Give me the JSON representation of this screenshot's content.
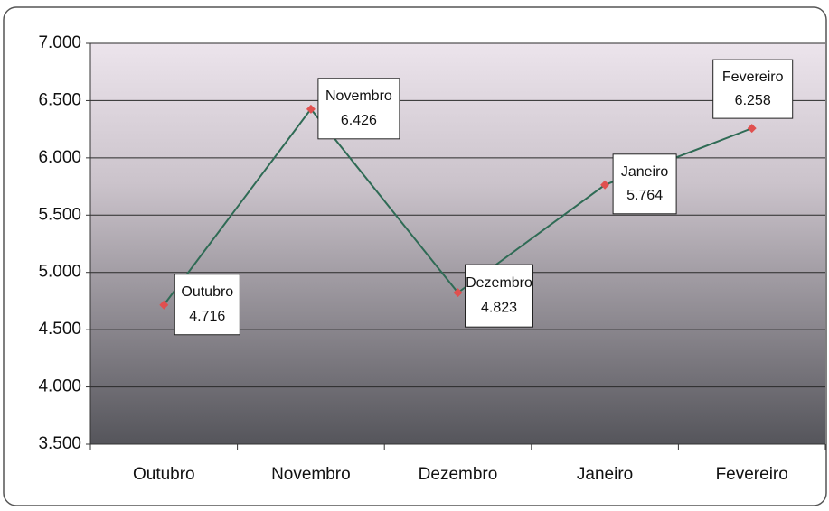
{
  "chart_data": {
    "type": "line",
    "categories": [
      "Outubro",
      "Novembro",
      "Dezembro",
      "Janeiro",
      "Fevereiro"
    ],
    "values": [
      4716,
      6426,
      4823,
      5764,
      6258
    ],
    "value_labels": [
      "4.716",
      "6.426",
      "4.823",
      "5.764",
      "6.258"
    ],
    "color": "#2f6b55",
    "marker_color": "#e0504f",
    "ylim": [
      3500,
      7000
    ],
    "yticks": [
      {
        "value": 3500,
        "label": "3.500"
      },
      {
        "value": 4000,
        "label": "4.000"
      },
      {
        "value": 4500,
        "label": "4.500"
      },
      {
        "value": 5000,
        "label": "5.000"
      },
      {
        "value": 5500,
        "label": "5.500"
      },
      {
        "value": 6000,
        "label": "6.000"
      },
      {
        "value": 6500,
        "label": "6.500"
      },
      {
        "value": 7000,
        "label": "7.000"
      }
    ],
    "grid": true
  }
}
